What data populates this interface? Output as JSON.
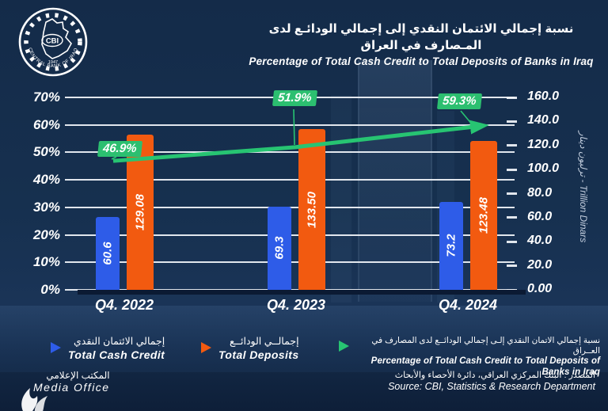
{
  "header": {
    "logo": {
      "abbr": "CBI",
      "ring_text": "CENTRAL BANK OF IRAQ",
      "year": "1947"
    },
    "title_ar": "نسبة إجمالي الائتمان النقدي إلى إجمالي الودائـع لدى المـصارف في العراق",
    "title_en": "Percentage of Total Cash Credit to Total Deposits of Banks in Iraq"
  },
  "chart_data": {
    "type": "bar",
    "categories": [
      "Q4. 2022",
      "Q4. 2023",
      "Q4. 2024"
    ],
    "series": [
      {
        "name": "Total Cash Credit",
        "name_ar": "إجمالي الائتمان النقدي",
        "color": "#2e5ce8",
        "values": [
          60.6,
          69.3,
          73.2
        ],
        "value_labels": [
          "60.6",
          "69.3",
          "73.2"
        ]
      },
      {
        "name": "Total Deposits",
        "name_ar": "إجمالــي الودائــع",
        "color": "#f25a10",
        "values": [
          129.08,
          133.5,
          123.48
        ],
        "value_labels": [
          "129.08",
          "133.50",
          "123.48"
        ]
      }
    ],
    "line_series": {
      "name": "Percentage of Total Cash Credit to Total Deposits of Banks in Iraq",
      "name_ar": "نسبة إجمالي الائتمان النقدي إلـى إجمالي الودائــع لدى المصارف في العــراق",
      "color": "#27c472",
      "values": [
        46.9,
        51.9,
        59.3
      ],
      "value_labels": [
        "46.9%",
        "51.9%",
        "59.3%"
      ],
      "label_bg": "#2cbf70"
    },
    "left_axis": {
      "ticks": [
        "70%",
        "60%",
        "50%",
        "40%",
        "30%",
        "20%",
        "10%",
        "0%"
      ],
      "range": [
        0,
        70
      ],
      "unit": "%"
    },
    "right_axis": {
      "ticks": [
        "160.0",
        "140.0",
        "120.0",
        "100.0",
        "80.0",
        "60.0",
        "40.0",
        "20.0",
        "0.00"
      ],
      "range": [
        0,
        160
      ],
      "title": "ترليون دينار - Trillion Dinars"
    },
    "grid": "horizontal-on"
  },
  "legend": {
    "items": [
      {
        "label_ar": "إجمالي الائتمان النقدي",
        "label_en": "Total Cash Credit",
        "color": "#2e5ce8"
      },
      {
        "label_ar": "إجمالــي الودائــع",
        "label_en": "Total Deposits",
        "color": "#f25a10"
      },
      {
        "label_ar": "نسبة إجمالي الاتمان النقدي إلـى إجمالي الودائــع لدى المصارف في العــراق",
        "label_en": "Percentage of Total Cash Credit to Total Deposits of Banks in Iraq",
        "color": "#27c472"
      }
    ]
  },
  "footer": {
    "media_office_ar": "المكتب الإعلامي",
    "media_office_en": "Media Office",
    "source_ar": "المصدر : البنك المركزي العراقي، دائرة الأحصاء والأبحاث",
    "source_en": "Source: CBI, Statistics & Research Department"
  }
}
